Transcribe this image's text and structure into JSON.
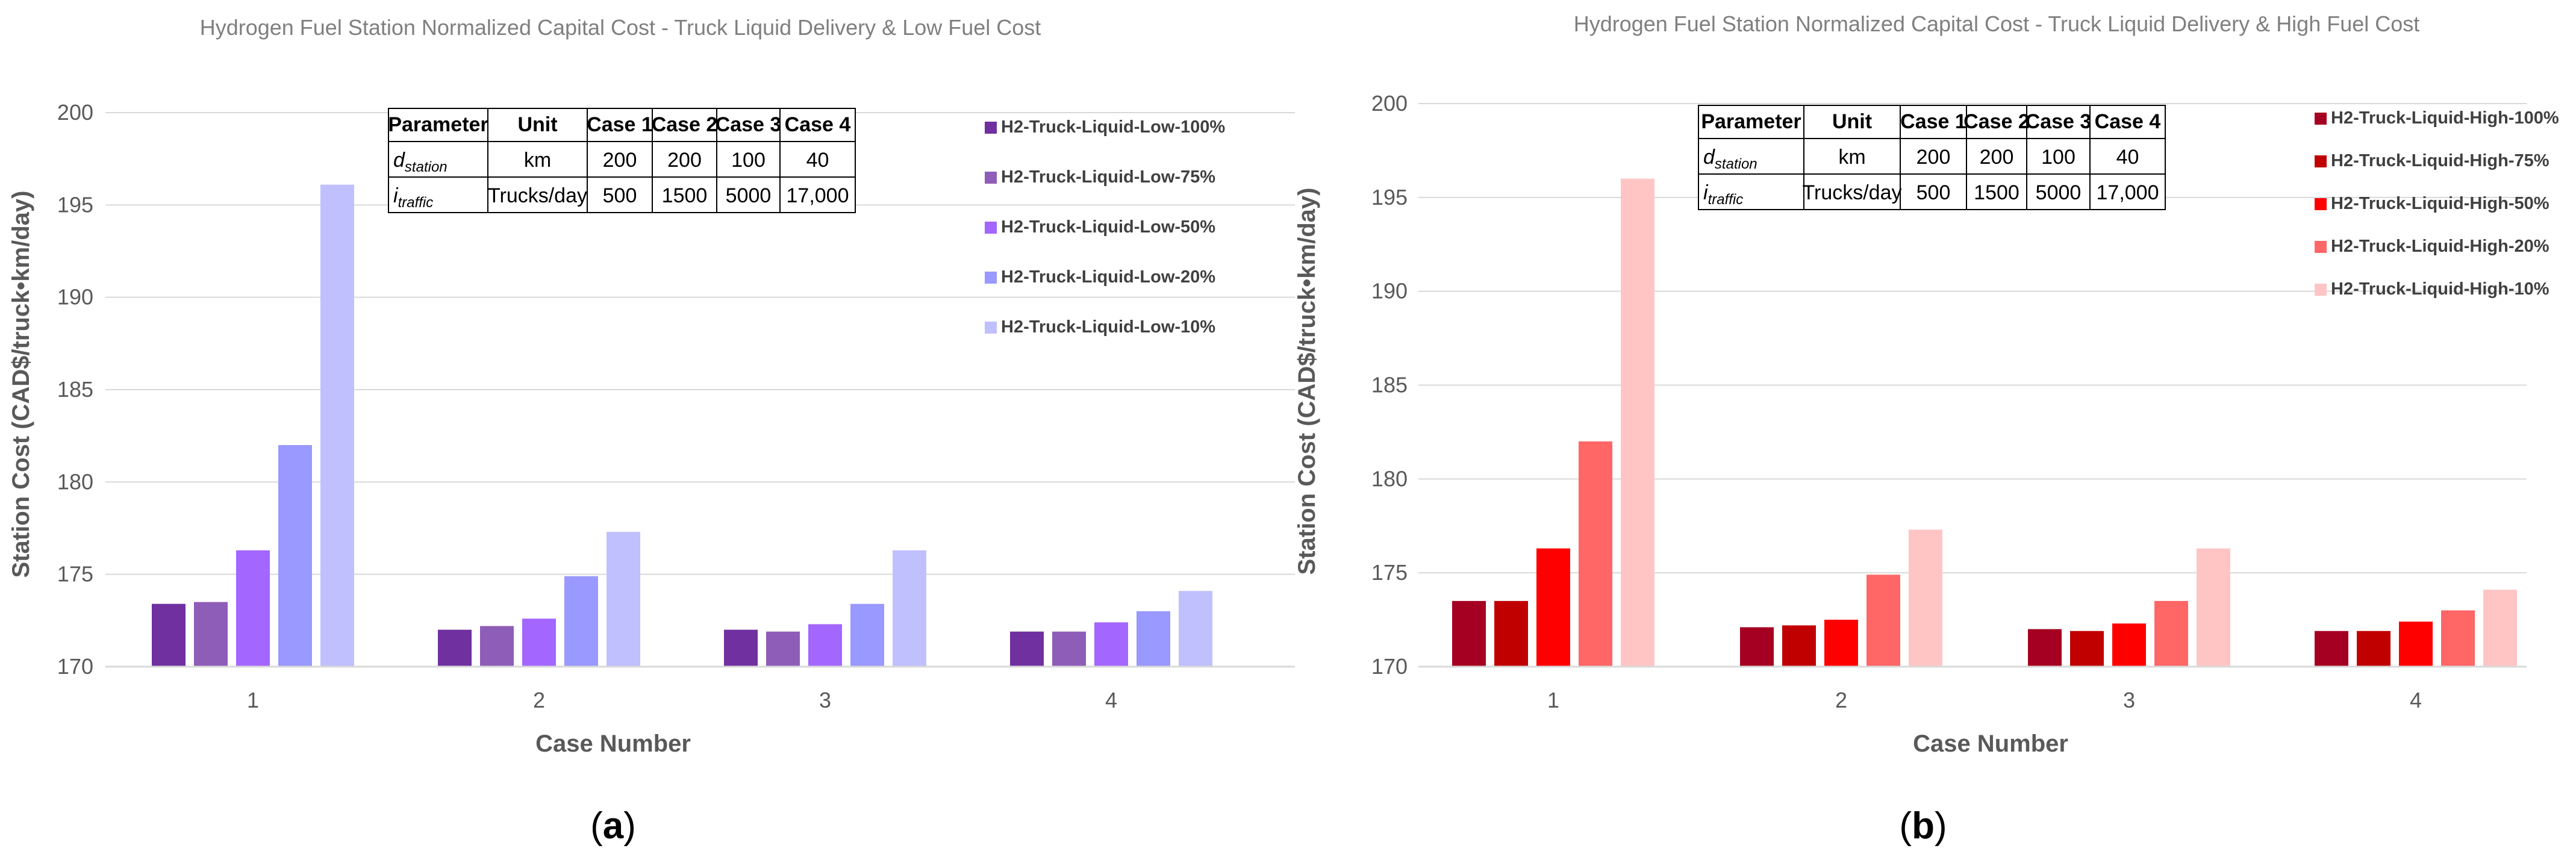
{
  "chart_data": [
    {
      "type": "bar",
      "title": "Hydrogen Fuel Station Normalized Capital Cost - Truck Liquid Delivery & Low Fuel Cost",
      "xlabel": "Case Number",
      "ylabel": "Station Cost (CAD$/truck•km/day)",
      "ylim": [
        170,
        200
      ],
      "yticks": [
        "170",
        "175",
        "180",
        "185",
        "190",
        "195",
        "200"
      ],
      "categories": [
        "1",
        "2",
        "3",
        "4"
      ],
      "series": [
        {
          "name": "H2-Truck-Liquid-Low-100%",
          "color": "#7030a0",
          "values": [
            173.4,
            172.0,
            172.0,
            171.9
          ]
        },
        {
          "name": "H2-Truck-Liquid-Low-75%",
          "color": "#8e5db8",
          "values": [
            173.5,
            172.2,
            171.9,
            171.9
          ]
        },
        {
          "name": "H2-Truck-Liquid-Low-50%",
          "color": "#a366ff",
          "values": [
            176.3,
            172.6,
            172.3,
            172.4
          ]
        },
        {
          "name": "H2-Truck-Liquid-Low-20%",
          "color": "#9999ff",
          "values": [
            182.0,
            174.9,
            173.4,
            173.0
          ]
        },
        {
          "name": "H2-Truck-Liquid-Low-10%",
          "color": "#c0c0ff",
          "values": [
            196.1,
            177.3,
            176.3,
            174.1
          ]
        }
      ],
      "caption": "(a)"
    },
    {
      "type": "bar",
      "title": "Hydrogen Fuel Station Normalized Capital Cost - Truck Liquid Delivery & High Fuel Cost",
      "xlabel": "Case Number",
      "ylabel": "Station Cost (CAD$/truck•km/day)",
      "ylim": [
        170,
        200
      ],
      "yticks": [
        "170",
        "175",
        "180",
        "185",
        "190",
        "195",
        "200"
      ],
      "categories": [
        "1",
        "2",
        "3",
        "4"
      ],
      "series": [
        {
          "name": "H2-Truck-Liquid-High-100%",
          "color": "#a50021",
          "values": [
            173.5,
            172.1,
            172.0,
            171.9
          ]
        },
        {
          "name": "H2-Truck-Liquid-High-75%",
          "color": "#c00000",
          "values": [
            173.5,
            172.2,
            171.9,
            171.9
          ]
        },
        {
          "name": "H2-Truck-Liquid-High-50%",
          "color": "#ff0000",
          "values": [
            176.3,
            172.5,
            172.3,
            172.4
          ]
        },
        {
          "name": "H2-Truck-Liquid-High-20%",
          "color": "#ff6666",
          "values": [
            182.0,
            174.9,
            173.5,
            173.0
          ]
        },
        {
          "name": "H2-Truck-Liquid-High-10%",
          "color": "#ffc5c5",
          "values": [
            196.0,
            177.3,
            176.3,
            174.1
          ]
        }
      ],
      "caption": "(b)"
    }
  ],
  "param_table": {
    "headers": [
      "Parameter",
      "Unit",
      "Case 1",
      "Case 2",
      "Case 3",
      "Case 4"
    ],
    "row1": {
      "symbol": "d",
      "sub": "station",
      "unit": "km",
      "values": [
        "200",
        "200",
        "100",
        "40"
      ]
    },
    "row2": {
      "symbol": "i",
      "sub": "traffic",
      "unit": "Trucks/day",
      "values": [
        "500",
        "1500",
        "5000",
        "17,000"
      ]
    }
  }
}
